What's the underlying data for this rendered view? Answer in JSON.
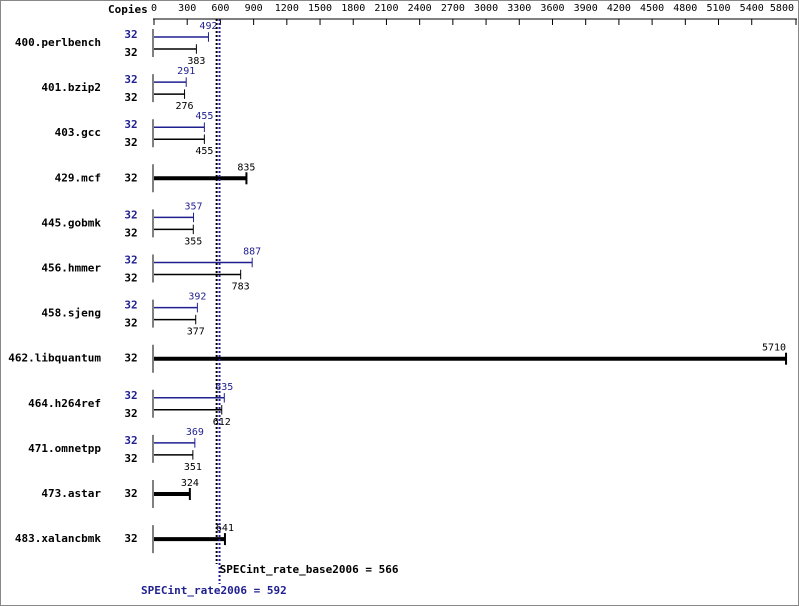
{
  "chart_data": {
    "type": "bar",
    "axis_label": "Copies",
    "categories": [
      "400.perlbench",
      "401.bzip2",
      "403.gcc",
      "429.mcf",
      "445.gobmk",
      "456.hmmer",
      "458.sjeng",
      "462.libquantum",
      "464.h264ref",
      "471.omnetpp",
      "473.astar",
      "483.xalancbmk"
    ],
    "base": {
      "color": "#000000",
      "copies": [
        32,
        32,
        32,
        32,
        32,
        32,
        32,
        32,
        32,
        32,
        32,
        32
      ],
      "values": [
        383,
        276,
        455,
        835,
        355,
        783,
        377,
        5710,
        612,
        351,
        324,
        641
      ]
    },
    "peak": {
      "color": "#1f1f8f",
      "copies": [
        32,
        32,
        32,
        null,
        32,
        32,
        32,
        null,
        32,
        32,
        null,
        null
      ],
      "values": [
        492,
        291,
        455,
        null,
        357,
        887,
        392,
        null,
        635,
        369,
        null,
        null
      ]
    },
    "xlim": [
      0,
      5800
    ],
    "xticks": [
      0,
      300,
      600,
      900,
      1200,
      1500,
      1800,
      2100,
      2400,
      2700,
      3000,
      3300,
      3600,
      3900,
      4200,
      4500,
      4800,
      5100,
      5400,
      5800
    ],
    "base_summary": {
      "value": 566,
      "label": "SPECint_rate_base2006 = 566"
    },
    "peak_summary": {
      "value": 592,
      "label": "SPECint_rate2006 = 592"
    }
  }
}
